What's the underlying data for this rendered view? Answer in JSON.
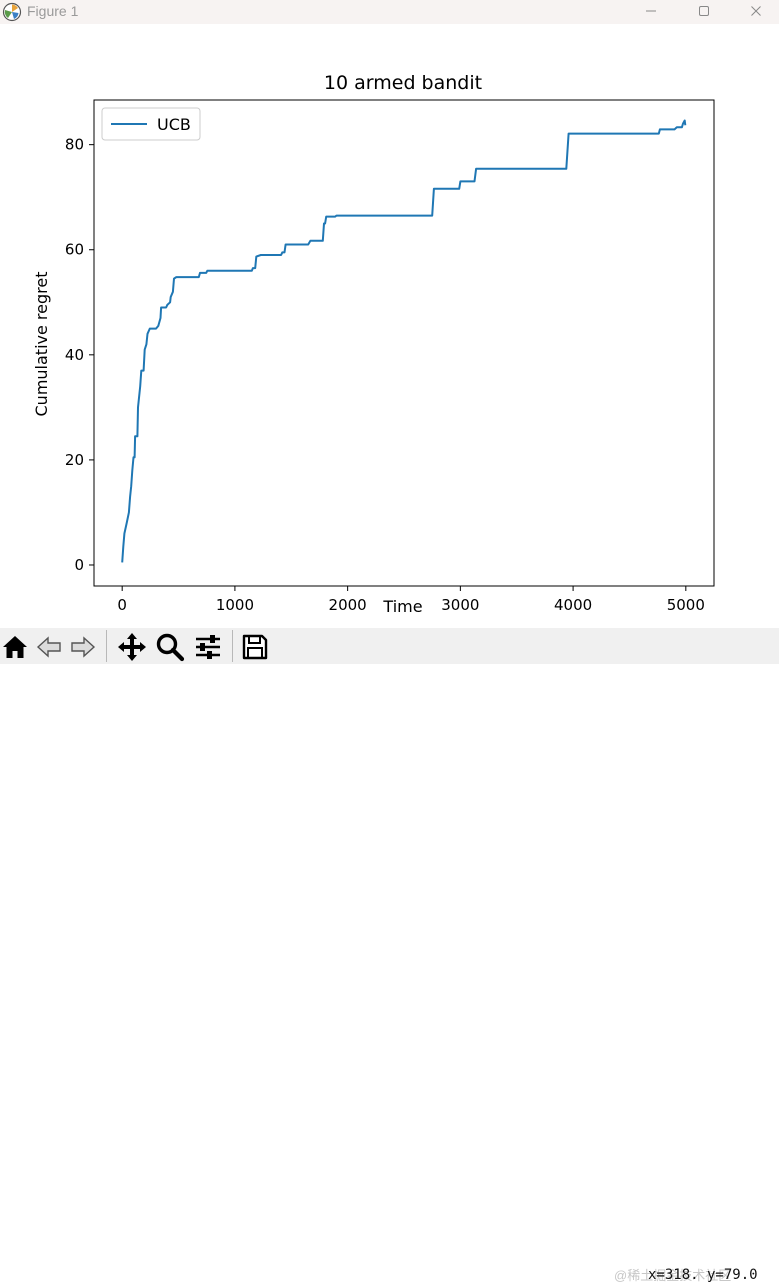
{
  "window": {
    "title": "Figure 1",
    "icon": "matplotlib-icon",
    "controls": [
      "minimize-icon",
      "maximize-icon",
      "close-icon"
    ]
  },
  "chart_data": {
    "type": "line",
    "title": "10 armed bandit",
    "xlabel": "Time",
    "ylabel": "Cumulative regret",
    "xlim": [
      -250,
      5250
    ],
    "ylim": [
      -4,
      88.5
    ],
    "xticks": [
      "0",
      "1000",
      "2000",
      "3000",
      "4000",
      "5000"
    ],
    "yticks": [
      "0",
      "20",
      "40",
      "60",
      "80"
    ],
    "legend": {
      "position": "top-left",
      "entries": [
        "UCB"
      ]
    },
    "grid": false,
    "series": [
      {
        "name": "UCB",
        "color": "#1f77b4",
        "points": [
          [
            0,
            0.5
          ],
          [
            10,
            3.5
          ],
          [
            20,
            6
          ],
          [
            40,
            8
          ],
          [
            60,
            10
          ],
          [
            70,
            13
          ],
          [
            80,
            15
          ],
          [
            90,
            18
          ],
          [
            100,
            20.5
          ],
          [
            110,
            20.5
          ],
          [
            115,
            24.5
          ],
          [
            135,
            24.5
          ],
          [
            140,
            30
          ],
          [
            160,
            34
          ],
          [
            170,
            37
          ],
          [
            190,
            37
          ],
          [
            200,
            41
          ],
          [
            215,
            42
          ],
          [
            225,
            44
          ],
          [
            245,
            45
          ],
          [
            300,
            45
          ],
          [
            320,
            45.5
          ],
          [
            340,
            47
          ],
          [
            345,
            49
          ],
          [
            390,
            49
          ],
          [
            400,
            49.5
          ],
          [
            425,
            50
          ],
          [
            430,
            51
          ],
          [
            450,
            52
          ],
          [
            460,
            54.5
          ],
          [
            480,
            54.8
          ],
          [
            680,
            54.8
          ],
          [
            690,
            55.6
          ],
          [
            745,
            55.6
          ],
          [
            755,
            56
          ],
          [
            1150,
            56
          ],
          [
            1160,
            56.5
          ],
          [
            1180,
            56.5
          ],
          [
            1190,
            58.7
          ],
          [
            1230,
            59
          ],
          [
            1410,
            59
          ],
          [
            1420,
            59.5
          ],
          [
            1440,
            59.5
          ],
          [
            1450,
            61
          ],
          [
            1650,
            61
          ],
          [
            1670,
            61.7
          ],
          [
            1780,
            61.7
          ],
          [
            1790,
            65
          ],
          [
            1800,
            65
          ],
          [
            1810,
            66.3
          ],
          [
            1890,
            66.3
          ],
          [
            1900,
            66.5
          ],
          [
            2750,
            66.5
          ],
          [
            2765,
            71.6
          ],
          [
            2990,
            71.6
          ],
          [
            3000,
            73
          ],
          [
            3125,
            73
          ],
          [
            3140,
            75.4
          ],
          [
            3940,
            75.4
          ],
          [
            3960,
            82.1
          ],
          [
            4760,
            82.1
          ],
          [
            4770,
            82.9
          ],
          [
            4900,
            82.9
          ],
          [
            4920,
            83.3
          ],
          [
            4965,
            83.3
          ],
          [
            4975,
            84
          ],
          [
            4990,
            84.6
          ],
          [
            4995,
            83.7
          ]
        ]
      }
    ]
  },
  "toolbar": {
    "tools": [
      {
        "name": "home-icon",
        "interactable": true
      },
      {
        "name": "back-arrow-icon",
        "interactable": true
      },
      {
        "name": "forward-arrow-icon",
        "interactable": true
      },
      {
        "name": "pan-icon",
        "interactable": true
      },
      {
        "name": "zoom-icon",
        "interactable": true
      },
      {
        "name": "subplots-config-icon",
        "interactable": true
      },
      {
        "name": "save-icon",
        "interactable": true
      }
    ],
    "coords_text": "x=318. y=79.0",
    "watermark": "@稀土掘金技术社区"
  }
}
